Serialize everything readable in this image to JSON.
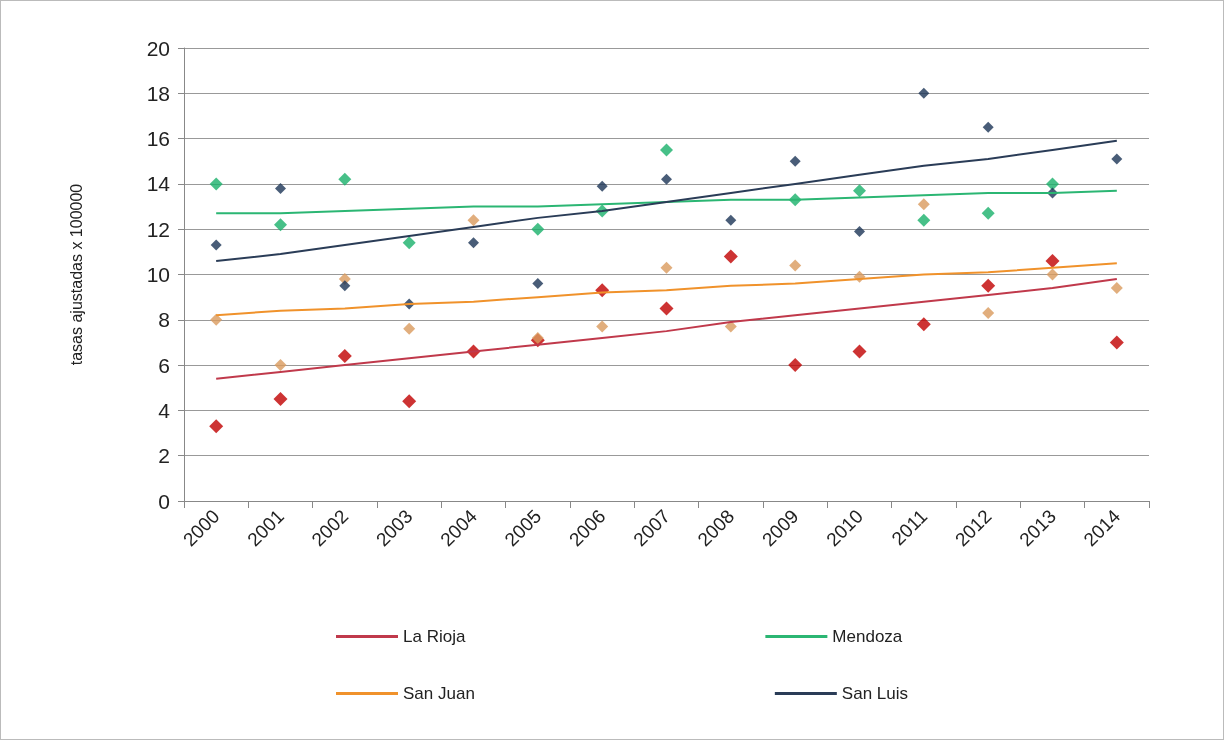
{
  "chart_data": {
    "type": "scatter",
    "ylabel": "tasas ajustadas x 100000",
    "categories": [
      "2000",
      "2001",
      "2002",
      "2003",
      "2004",
      "2005",
      "2006",
      "2007",
      "2008",
      "2009",
      "2010",
      "2011",
      "2012",
      "2013",
      "2014"
    ],
    "series": [
      {
        "color": "#c00000",
        "values": [
          3.3,
          4.5,
          6.4,
          4.4,
          6.6,
          7.1,
          9.3,
          8.5,
          10.8,
          6.0,
          6.6,
          7.8,
          9.5,
          10.6,
          7.0
        ]
      },
      {
        "type": "line",
        "name": "La Rioja",
        "color": "#c0394b",
        "marker": "none",
        "values": [
          5.4,
          5.7,
          6.0,
          6.3,
          6.6,
          6.9,
          7.2,
          7.5,
          7.9,
          8.2,
          8.5,
          8.8,
          9.1,
          9.4,
          9.8
        ]
      },
      {
        "color": "#19b06a",
        "values": [
          14.0,
          12.2,
          14.2,
          11.4,
          null,
          12.0,
          12.8,
          15.5,
          null,
          13.3,
          13.7,
          12.4,
          12.7,
          14.0,
          null
        ]
      },
      {
        "type": "line",
        "name": "Mendoza",
        "color": "#2bb673",
        "marker": "none",
        "values": [
          12.7,
          12.7,
          12.8,
          12.9,
          13.0,
          13.0,
          13.1,
          13.2,
          13.3,
          13.3,
          13.4,
          13.5,
          13.6,
          13.6,
          13.7
        ]
      },
      {
        "color": "#d99a5c",
        "values": [
          8.0,
          6.0,
          9.8,
          7.6,
          12.4,
          7.2,
          7.7,
          10.3,
          7.7,
          10.4,
          9.9,
          13.1,
          8.3,
          10.0,
          9.4
        ]
      },
      {
        "type": "line",
        "name": "San Juan",
        "color": "#f0922b",
        "marker": "none",
        "values": [
          8.2,
          8.4,
          8.5,
          8.7,
          8.8,
          9.0,
          9.2,
          9.3,
          9.5,
          9.6,
          9.8,
          10.0,
          10.1,
          10.3,
          10.5
        ]
      },
      {
        "color": "#1b3556",
        "values": [
          11.3,
          13.8,
          9.5,
          8.7,
          11.4,
          9.6,
          13.9,
          14.2,
          12.4,
          15.0,
          11.9,
          18.0,
          16.5,
          13.6,
          15.1
        ]
      },
      {
        "type": "line",
        "name": "San Luis",
        "color": "#2a3c57",
        "marker": "none",
        "values": [
          10.6,
          10.9,
          11.3,
          11.7,
          12.1,
          12.5,
          12.8,
          13.2,
          13.6,
          14.0,
          14.4,
          14.8,
          15.1,
          15.5,
          15.9
        ]
      }
    ],
    "ylim": [
      0,
      20
    ],
    "yticks": [
      0,
      2,
      4,
      6,
      8,
      10,
      12,
      14,
      16,
      18,
      20
    ],
    "grid": "y",
    "legend": "bottom",
    "marker": "diamond"
  }
}
